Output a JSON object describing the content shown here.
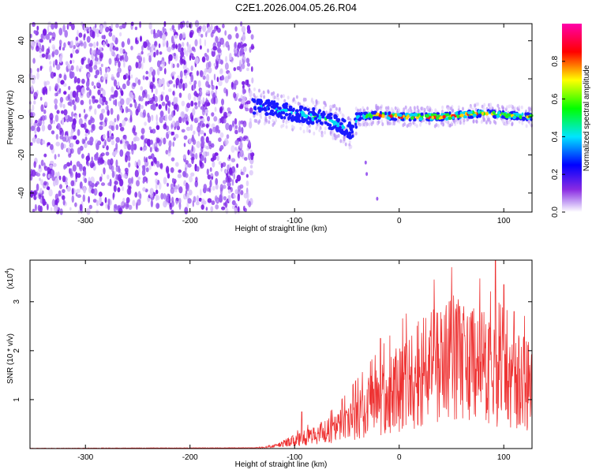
{
  "title": "C2E1.2026.004.05.26.R04",
  "chart_data": [
    {
      "type": "heatmap",
      "xlabel": "Height of straight line (km)",
      "ylabel": "Frequency (Hz)",
      "xlim": [
        -353,
        127
      ],
      "ylim": [
        -50,
        49
      ],
      "xticks": [
        -300,
        -200,
        -100,
        0,
        100
      ],
      "yticks": [
        -40,
        -20,
        0,
        20,
        40
      ],
      "colorbar": {
        "label": "Normalized spectral amplitude",
        "range": [
          0.0,
          1.0
        ],
        "ticks": [
          "0.0",
          "0.2",
          "0.4",
          "0.6",
          "0.8"
        ],
        "colors": [
          "#ffffff",
          "#8a2be2",
          "#0000ff",
          "#00e5ff",
          "#00ff00",
          "#ffff00",
          "#ff0000",
          "#ff00aa"
        ]
      },
      "noise_region_km": [
        -353,
        -140
      ],
      "signal_trace": {
        "x": [
          -140,
          -120,
          -100,
          -80,
          -60,
          -45,
          -40,
          -20,
          0,
          20,
          40,
          60,
          80,
          100,
          127
        ],
        "y": [
          6,
          4,
          2,
          0,
          -3,
          -8,
          0,
          1,
          0,
          0,
          0,
          1,
          2,
          1,
          0
        ],
        "amplitude": [
          0.45,
          0.5,
          0.55,
          0.6,
          0.55,
          0.5,
          0.6,
          0.9,
          0.95,
          0.95,
          0.95,
          0.9,
          0.85,
          0.8,
          0.75
        ]
      },
      "tail_points": {
        "x": [
          -32,
          -31,
          -21
        ],
        "y": [
          -24,
          -30,
          -43
        ]
      }
    },
    {
      "type": "line",
      "xlabel": "Height of straight line (km)",
      "ylabel": "SNR (10 * v/v)",
      "yscale_label": "(x10",
      "yscale_exp": "4",
      "xlim": [
        -353,
        127
      ],
      "ylim": [
        0,
        3.85
      ],
      "xticks": [
        -300,
        -200,
        -100,
        0,
        100
      ],
      "yticks": [
        1,
        2,
        3
      ],
      "color": "#ee3333",
      "envelope": {
        "x": [
          -353,
          -140,
          -120,
          -100,
          -80,
          -60,
          -40,
          -20,
          0,
          20,
          40,
          60,
          80,
          100,
          127
        ],
        "y": [
          0.0,
          0.01,
          0.05,
          0.18,
          0.3,
          0.45,
          0.75,
          1.05,
          1.35,
          1.65,
          1.9,
          2.0,
          1.8,
          1.5,
          1.4
        ]
      },
      "peaks": {
        "x": [
          -93,
          -18,
          30,
          70,
          92,
          100,
          110
        ],
        "y": [
          0.75,
          2.25,
          2.3,
          2.8,
          3.85,
          3.35,
          2.8
        ]
      }
    }
  ]
}
